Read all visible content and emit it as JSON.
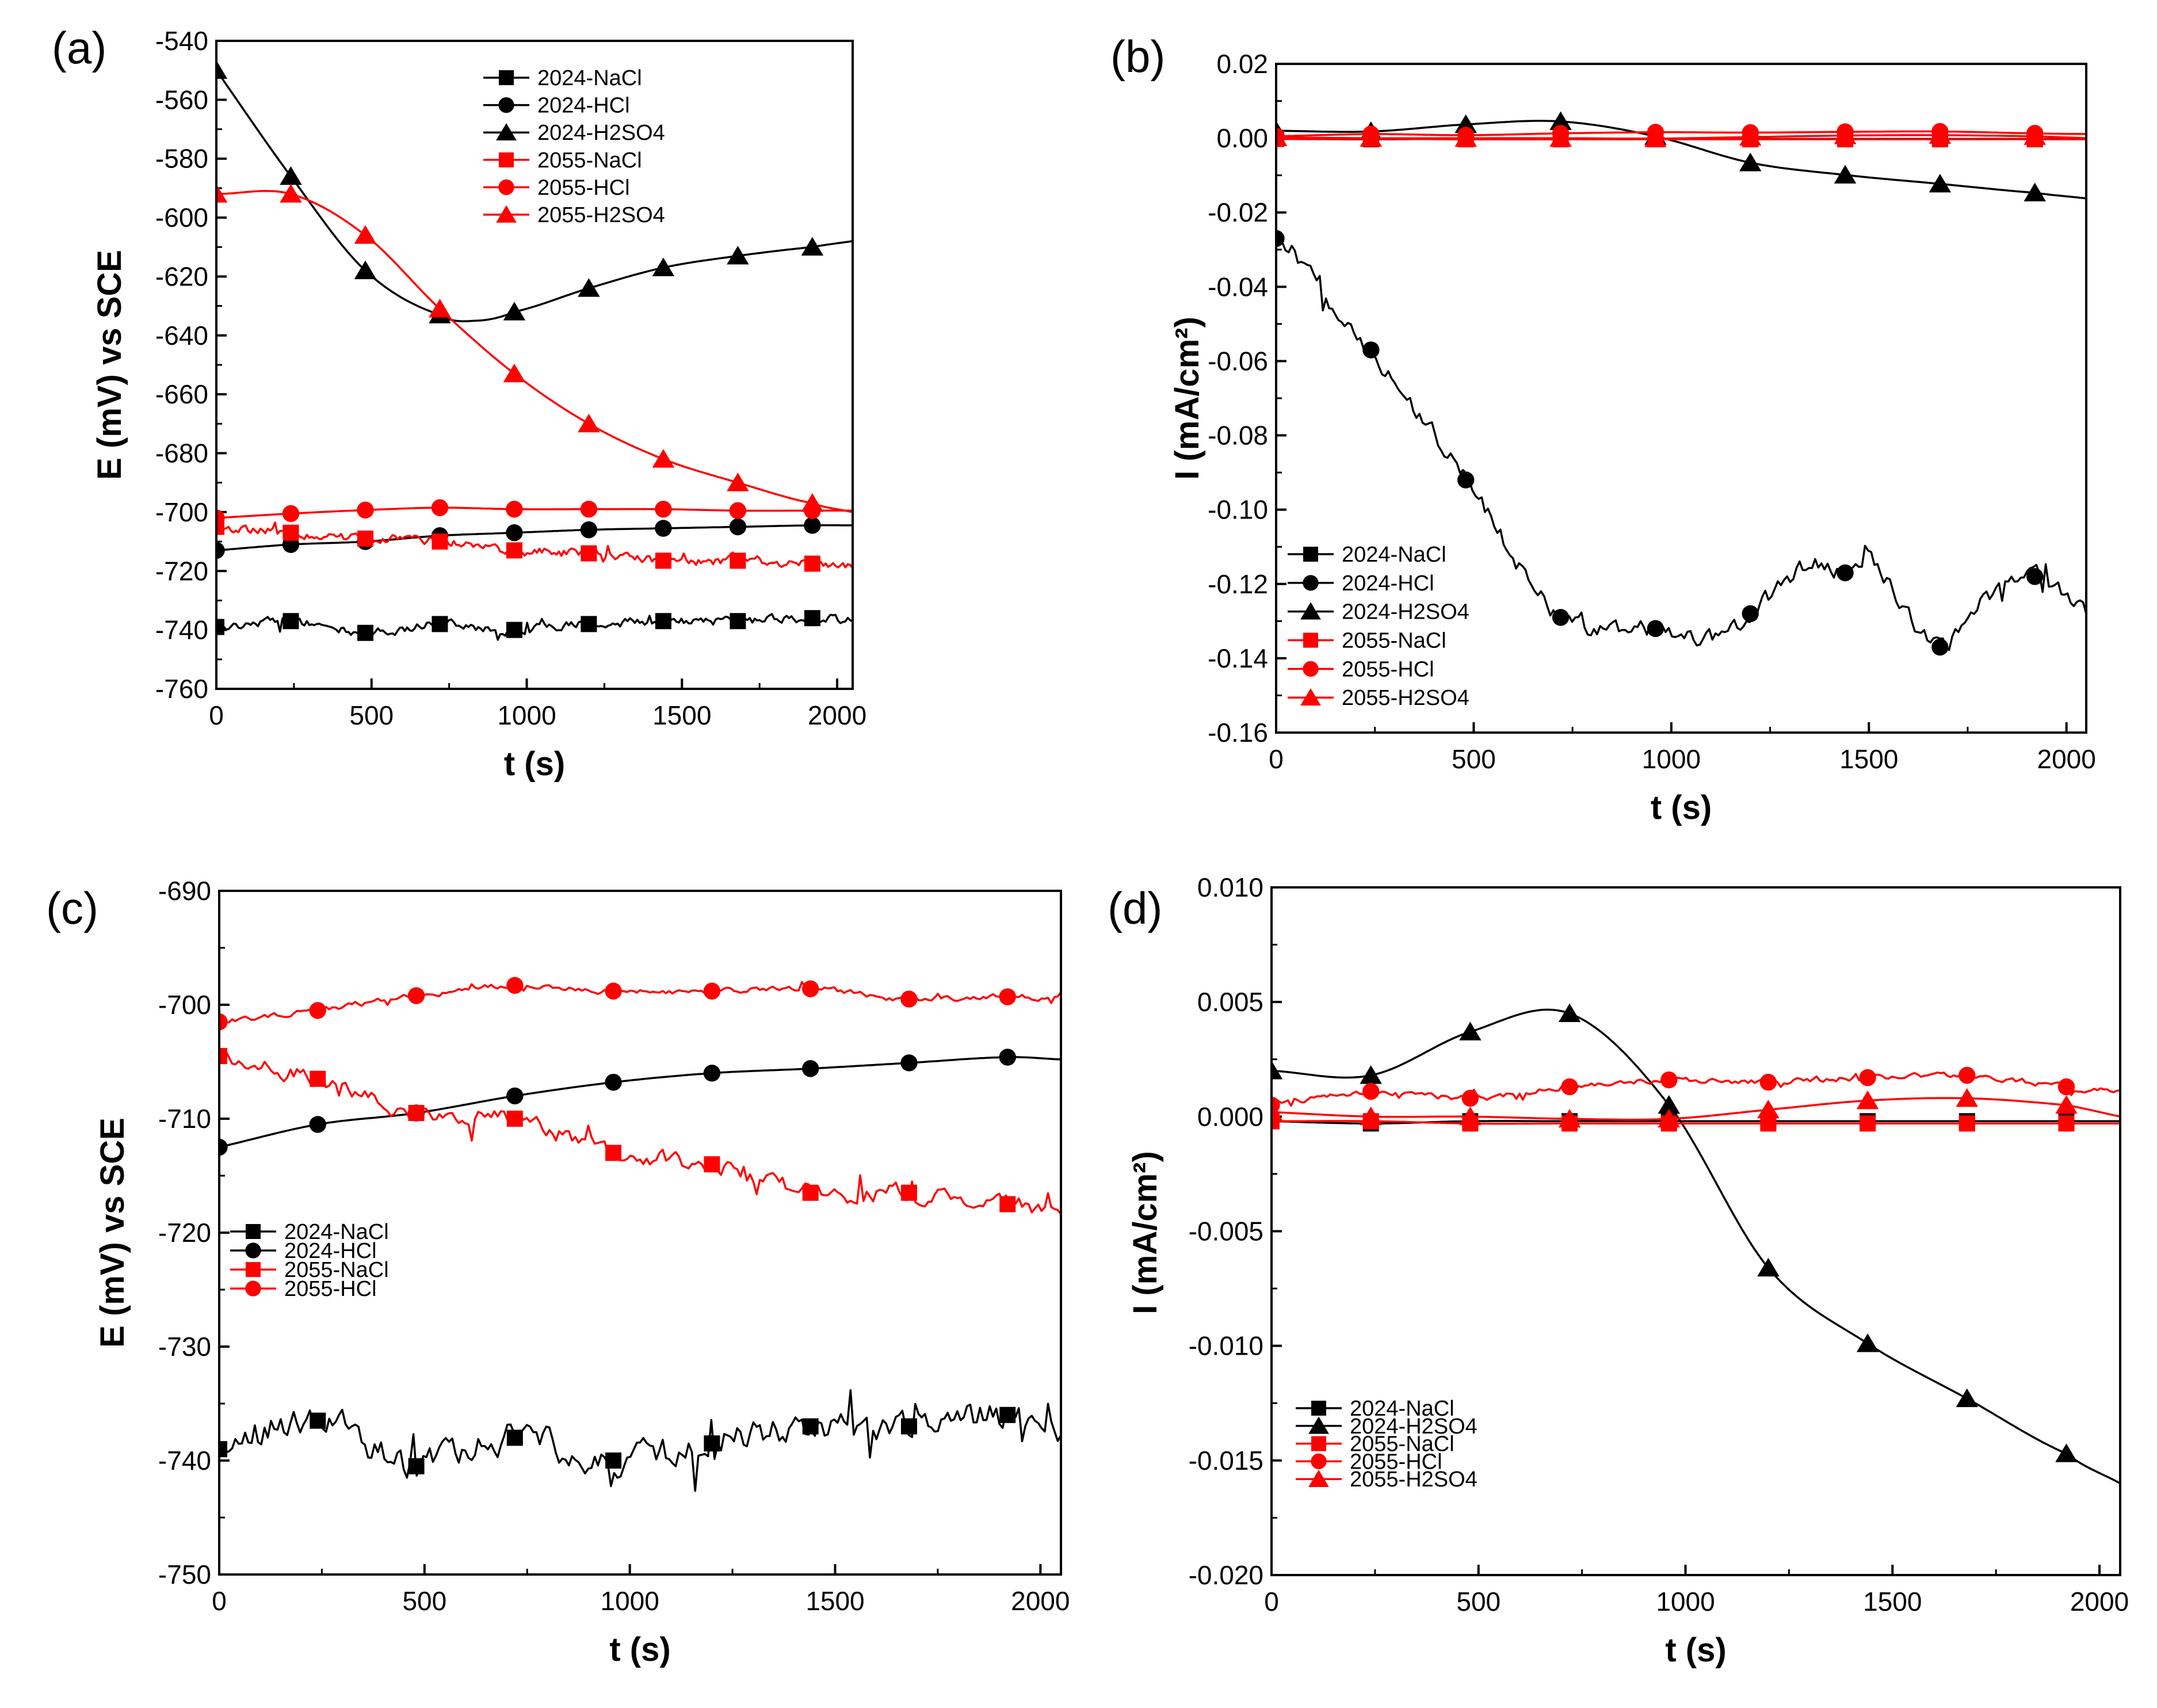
{
  "figure": {
    "colors": {
      "black": "#000000",
      "red": "#ff0000"
    }
  },
  "chart_data": [
    {
      "type": "line",
      "panel": "(a)",
      "xlabel": "t (s)",
      "ylabel": "E (mV) vs SCE",
      "xlim": [
        0,
        2050
      ],
      "ylim": [
        -760,
        -540
      ],
      "xticks": [
        0,
        500,
        1000,
        1500,
        2000
      ],
      "xtick_labels": [
        "0",
        "500",
        "1000",
        "1500",
        "2000"
      ],
      "yticks": [
        -760,
        -740,
        -720,
        -700,
        -680,
        -660,
        -640,
        -620,
        -600,
        -580,
        -560,
        -540
      ],
      "ytick_labels": [
        "-760",
        "-740",
        "-720",
        "-700",
        "-680",
        "-660",
        "-640",
        "-620",
        "-600",
        "-580",
        "-560",
        "-540"
      ],
      "legend_position": "top-center",
      "series": [
        {
          "name": "2024-NaCl",
          "color": "black",
          "marker": "square",
          "noise": 2.5,
          "x": [
            0,
            240,
            480,
            720,
            960,
            1200,
            1440,
            1680,
            1920,
            2050
          ],
          "y": [
            -739,
            -737,
            -741,
            -738,
            -740,
            -738,
            -737,
            -737,
            -736,
            -737
          ]
        },
        {
          "name": "2024-HCl",
          "color": "black",
          "marker": "circle",
          "noise": 0,
          "x": [
            0,
            240,
            480,
            720,
            960,
            1200,
            1440,
            1680,
            1920,
            2050
          ],
          "y": [
            -713,
            -711,
            -710,
            -708,
            -707,
            -706,
            -705.5,
            -705,
            -704.5,
            -704.5
          ]
        },
        {
          "name": "2024-H2SO4",
          "color": "black",
          "marker": "triangle",
          "noise": 0,
          "x": [
            0,
            240,
            480,
            720,
            840,
            960,
            1200,
            1440,
            1680,
            1920,
            2050
          ],
          "y": [
            -550,
            -586,
            -618,
            -633,
            -635,
            -632,
            -624,
            -617,
            -613,
            -610,
            -608
          ]
        },
        {
          "name": "2055-NaCl",
          "color": "red",
          "marker": "square",
          "noise": 2.5,
          "x": [
            0,
            240,
            480,
            720,
            960,
            1200,
            1440,
            1680,
            1920,
            2050
          ],
          "y": [
            -705,
            -707,
            -709,
            -710,
            -713,
            -714,
            -716.5,
            -716.5,
            -717.5,
            -718
          ]
        },
        {
          "name": "2055-HCl",
          "color": "red",
          "marker": "circle",
          "noise": 0,
          "x": [
            0,
            240,
            480,
            720,
            960,
            1200,
            1440,
            1680,
            1920,
            2050
          ],
          "y": [
            -702,
            -700.5,
            -699.3,
            -698.5,
            -699,
            -699,
            -699,
            -699.5,
            -699.5,
            -699.5
          ]
        },
        {
          "name": "2055-H2SO4",
          "color": "red",
          "marker": "triangle",
          "noise": 0,
          "x": [
            0,
            240,
            480,
            720,
            960,
            1200,
            1440,
            1680,
            1920,
            2050
          ],
          "y": [
            -592,
            -592,
            -606,
            -631,
            -653,
            -670,
            -682,
            -690,
            -697,
            -700
          ]
        }
      ]
    },
    {
      "type": "line",
      "panel": "(b)",
      "xlabel": "t (s)",
      "ylabel": "I (mA/cm²)",
      "xlim": [
        0,
        2050
      ],
      "ylim": [
        -0.16,
        0.02
      ],
      "xticks": [
        0,
        500,
        1000,
        1500,
        2000
      ],
      "xtick_labels": [
        "0",
        "500",
        "1000",
        "1500",
        "2000"
      ],
      "yticks": [
        -0.16,
        -0.14,
        -0.12,
        -0.1,
        -0.08,
        -0.06,
        -0.04,
        -0.02,
        0.0,
        0.02
      ],
      "ytick_labels": [
        "-0.16",
        "-0.14",
        "-0.12",
        "-0.10",
        "-0.08",
        "-0.06",
        "-0.04",
        "-0.02",
        "0.00",
        "0.02"
      ],
      "legend_position": "bottom-left",
      "series": [
        {
          "name": "2024-NaCl",
          "color": "black",
          "marker": "square",
          "noise": 0,
          "x": [
            0,
            240,
            480,
            720,
            960,
            1200,
            1440,
            1680,
            1920,
            2050
          ],
          "y": [
            -0.0002,
            -0.0003,
            -0.0002,
            -0.0002,
            -0.0002,
            -0.0002,
            -0.0002,
            -0.0002,
            -0.0002,
            -0.0002
          ]
        },
        {
          "name": "2024-HCl",
          "color": "black",
          "marker": "circle",
          "noise": 0.004,
          "x": [
            0,
            240,
            480,
            720,
            960,
            1100,
            1200,
            1350,
            1440,
            1500,
            1600,
            1680,
            1800,
            1920,
            2050
          ],
          "y": [
            -0.027,
            -0.057,
            -0.092,
            -0.129,
            -0.132,
            -0.135,
            -0.128,
            -0.115,
            -0.117,
            -0.113,
            -0.128,
            -0.137,
            -0.124,
            -0.118,
            -0.127
          ]
        },
        {
          "name": "2024-H2SO4",
          "color": "black",
          "marker": "triangle",
          "noise": 0,
          "x": [
            0,
            240,
            480,
            720,
            960,
            1200,
            1440,
            1680,
            1920,
            2050
          ],
          "y": [
            0.002,
            0.0018,
            0.0037,
            0.0045,
            0.0005,
            -0.0066,
            -0.0099,
            -0.0123,
            -0.0147,
            -0.0162
          ]
        },
        {
          "name": "2055-NaCl",
          "color": "red",
          "marker": "square",
          "noise": 0,
          "x": [
            0,
            240,
            480,
            720,
            960,
            1200,
            1440,
            1680,
            1920,
            2050
          ],
          "y": [
            -0.0002,
            -0.0002,
            -0.0003,
            -0.0003,
            -0.0003,
            -0.0003,
            -0.0003,
            -0.0003,
            -0.0003,
            -0.0003
          ]
        },
        {
          "name": "2055-HCl",
          "color": "red",
          "marker": "circle",
          "noise": 0,
          "x": [
            0,
            240,
            480,
            720,
            960,
            1200,
            1440,
            1680,
            1920,
            2050
          ],
          "y": [
            0.0005,
            0.0011,
            0.0008,
            0.0013,
            0.0016,
            0.0015,
            0.0017,
            0.0018,
            0.0013,
            0.0011
          ]
        },
        {
          "name": "2055-H2SO4",
          "color": "red",
          "marker": "triangle",
          "noise": 0,
          "x": [
            0,
            240,
            480,
            720,
            960,
            1200,
            1440,
            1680,
            1920,
            2050
          ],
          "y": [
            0.0002,
            0.0,
            0.0,
            0.0,
            -0.0001,
            0.0003,
            0.0007,
            0.0008,
            0.0005,
            0.0
          ]
        }
      ]
    },
    {
      "type": "line",
      "panel": "(c)",
      "xlabel": "t (s)",
      "ylabel": "E (mV) vs SCE",
      "xlim": [
        0,
        2050
      ],
      "ylim": [
        -750,
        -690
      ],
      "xticks": [
        0,
        500,
        1000,
        1500,
        2000
      ],
      "xtick_labels": [
        "0",
        "500",
        "1000",
        "1500",
        "2000"
      ],
      "yticks": [
        -750,
        -740,
        -730,
        -720,
        -710,
        -700,
        -690
      ],
      "ytick_labels": [
        "-750",
        "-740",
        "-730",
        "-720",
        "-710",
        "-700",
        "-690"
      ],
      "legend_position": "bottom-left",
      "series": [
        {
          "name": "2024-NaCl",
          "color": "black",
          "marker": "square",
          "noise": 2.2,
          "x": [
            0,
            240,
            480,
            720,
            960,
            1200,
            1440,
            1680,
            1920,
            2050
          ],
          "y": [
            -739,
            -736.5,
            -740.5,
            -738,
            -740,
            -738.5,
            -737,
            -737,
            -736,
            -737
          ]
        },
        {
          "name": "2024-HCl",
          "color": "black",
          "marker": "circle",
          "noise": 0,
          "x": [
            0,
            240,
            480,
            720,
            960,
            1200,
            1440,
            1680,
            1920,
            2050
          ],
          "y": [
            -712.5,
            -710.5,
            -709.5,
            -708,
            -706.8,
            -706,
            -705.6,
            -705.1,
            -704.6,
            -704.8
          ]
        },
        {
          "name": "2055-NaCl",
          "color": "red",
          "marker": "square",
          "noise": 1.2,
          "x": [
            0,
            240,
            480,
            720,
            960,
            1200,
            1440,
            1680,
            1920,
            2050
          ],
          "y": [
            -704.5,
            -706.5,
            -709.5,
            -710,
            -713,
            -714,
            -716.5,
            -716.5,
            -717.5,
            -717.8
          ]
        },
        {
          "name": "2055-HCl",
          "color": "red",
          "marker": "circle",
          "noise": 0.4,
          "x": [
            0,
            240,
            480,
            720,
            960,
            1200,
            1440,
            1680,
            1920,
            2050
          ],
          "y": [
            -701.5,
            -700.5,
            -699.2,
            -698.3,
            -698.8,
            -698.8,
            -698.6,
            -699.5,
            -699.3,
            -699.6
          ]
        }
      ]
    },
    {
      "type": "line",
      "panel": "(d)",
      "xlabel": "t (s)",
      "ylabel": "I (mA/cm²)",
      "xlim": [
        0,
        2050
      ],
      "ylim": [
        -0.02,
        0.01
      ],
      "xticks": [
        0,
        500,
        1000,
        1500,
        2000
      ],
      "xtick_labels": [
        "0",
        "500",
        "1000",
        "1500",
        "2000"
      ],
      "yticks": [
        -0.02,
        -0.015,
        -0.01,
        -0.005,
        0.0,
        0.005,
        0.01
      ],
      "ytick_labels": [
        "-0.020",
        "-0.015",
        "-0.010",
        "-0.005",
        "0.000",
        "0.005",
        "0.010"
      ],
      "legend_position": "bottom-left",
      "series": [
        {
          "name": "2024-NaCl",
          "color": "black",
          "marker": "square",
          "noise": 0,
          "x": [
            0,
            240,
            480,
            720,
            960,
            1200,
            1440,
            1680,
            1920,
            2050
          ],
          "y": [
            -0.0002,
            -0.0003,
            -0.0002,
            -0.0002,
            -0.0002,
            -0.0002,
            -0.0002,
            -0.0002,
            -0.0002,
            -0.0002
          ]
        },
        {
          "name": "2024-H2SO4",
          "color": "black",
          "marker": "triangle",
          "noise": 0,
          "x": [
            0,
            240,
            480,
            720,
            960,
            1200,
            1440,
            1680,
            1920,
            2050
          ],
          "y": [
            0.002,
            0.0018,
            0.0037,
            0.0045,
            0.0005,
            -0.0066,
            -0.0099,
            -0.0123,
            -0.0147,
            -0.016
          ]
        },
        {
          "name": "2055-NaCl",
          "color": "red",
          "marker": "square",
          "noise": 0,
          "x": [
            0,
            240,
            480,
            720,
            960,
            1200,
            1440,
            1680,
            1920,
            2050
          ],
          "y": [
            -0.0002,
            -0.0002,
            -0.0003,
            -0.0003,
            -0.0003,
            -0.0003,
            -0.0003,
            -0.0003,
            -0.0003,
            -0.0003
          ]
        },
        {
          "name": "2055-HCl",
          "color": "red",
          "marker": "circle",
          "noise": 0.0002,
          "x": [
            0,
            240,
            480,
            720,
            960,
            1200,
            1440,
            1680,
            1920,
            2050
          ],
          "y": [
            0.0005,
            0.0011,
            0.0008,
            0.0013,
            0.0016,
            0.0015,
            0.0017,
            0.0018,
            0.0013,
            0.0011
          ]
        },
        {
          "name": "2055-H2SO4",
          "color": "red",
          "marker": "triangle",
          "noise": 0,
          "x": [
            0,
            240,
            480,
            720,
            960,
            1200,
            1440,
            1680,
            1920,
            2050
          ],
          "y": [
            0.0002,
            0.0,
            0.0,
            -0.0001,
            -0.0001,
            0.0003,
            0.0007,
            0.0008,
            0.0005,
            0.0
          ]
        }
      ]
    }
  ]
}
